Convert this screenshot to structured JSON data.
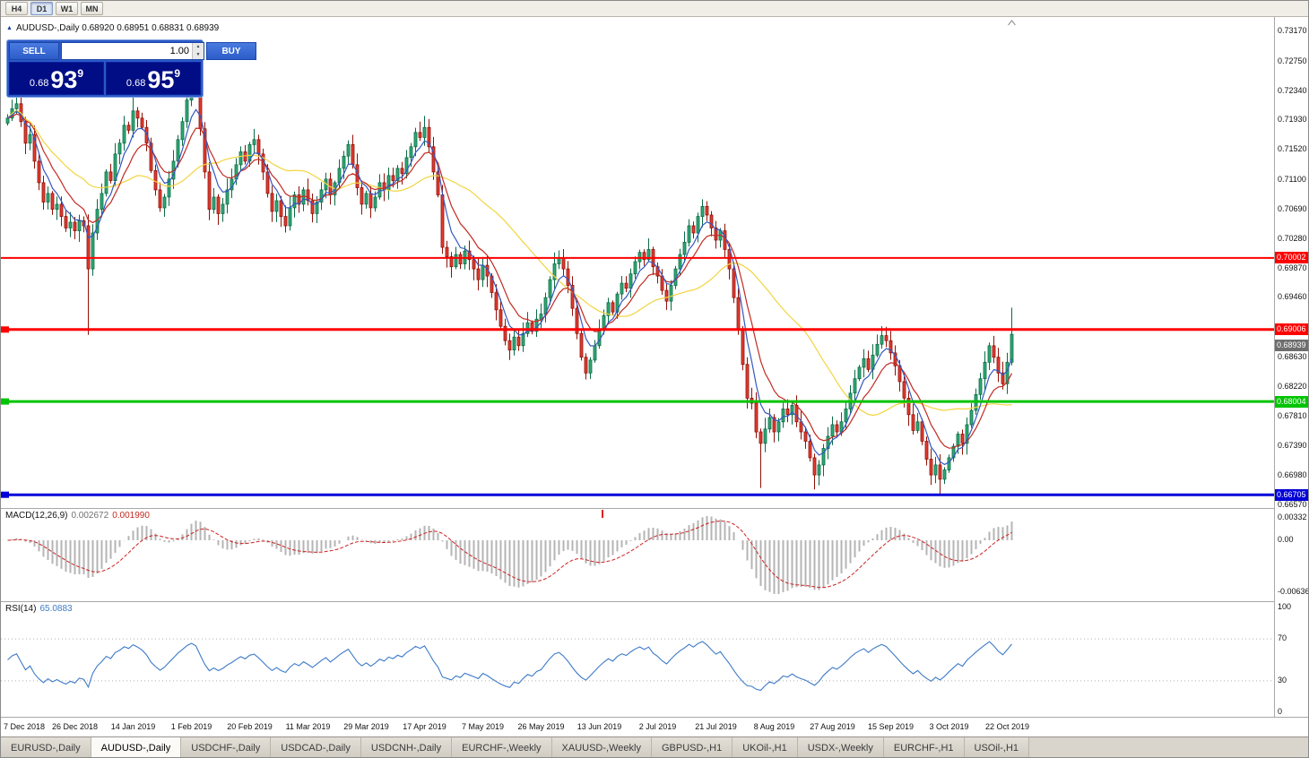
{
  "icons": {
    "collapse": "▲",
    "spinner_up": "▲",
    "spinner_down": "▼"
  },
  "toolbar": {
    "timeframes": [
      {
        "label": "H4",
        "active": false
      },
      {
        "label": "D1",
        "active": true
      },
      {
        "label": "W1",
        "active": false
      },
      {
        "label": "MN",
        "active": false
      }
    ]
  },
  "chart_header": {
    "symbol_line": "AUDUSD-,Daily  0.68920 0.68951 0.68831 0.68939"
  },
  "trade_panel": {
    "sell_label": "SELL",
    "buy_label": "BUY",
    "volume": "1.00",
    "sell_price": {
      "prefix": "0.68",
      "big": "93",
      "sup": "9"
    },
    "buy_price": {
      "prefix": "0.68",
      "big": "95",
      "sup": "9"
    }
  },
  "price_axis": {
    "max": 0.7317,
    "min": 0.6657,
    "ticks": [
      "0.73170",
      "0.72750",
      "0.72340",
      "0.71930",
      "0.71520",
      "0.71100",
      "0.70690",
      "0.70280",
      "0.69870",
      "0.69460",
      "0.68630",
      "0.68220",
      "0.67810",
      "0.67390",
      "0.66980",
      "0.66570"
    ],
    "current_price": {
      "label": "0.68939",
      "value": 0.68939,
      "color": "#6e6e6e"
    }
  },
  "hlines": [
    {
      "price": 0.70002,
      "label": "0.70002",
      "color": "#fe0000",
      "width": 2,
      "anchor": false
    },
    {
      "price": 0.69006,
      "label": "0.69006",
      "color": "#fe0000",
      "width": 3,
      "anchor": true
    },
    {
      "price": 0.68004,
      "label": "0.68004",
      "color": "#00c400",
      "width": 3,
      "anchor": true
    },
    {
      "price": 0.66705,
      "label": "0.66705",
      "color": "#0000d8",
      "width": 3,
      "anchor": true
    }
  ],
  "chart_data": {
    "type": "candlestick",
    "symbol": "AUDUSD-",
    "timeframe": "Daily",
    "ohlc_header": {
      "open": "0.68920",
      "high": "0.68951",
      "low": "0.68831",
      "close": "0.68939"
    },
    "first_open": 0.7188,
    "closes": [
      0.7195,
      0.7208,
      0.7215,
      0.719,
      0.716,
      0.7172,
      0.7135,
      0.7105,
      0.7078,
      0.709,
      0.7068,
      0.7075,
      0.7058,
      0.7042,
      0.705,
      0.7038,
      0.7052,
      0.7045,
      0.6985,
      0.7035,
      0.7068,
      0.709,
      0.712,
      0.7108,
      0.7145,
      0.716,
      0.7185,
      0.7178,
      0.7205,
      0.7195,
      0.7182,
      0.716,
      0.7122,
      0.7095,
      0.707,
      0.7085,
      0.711,
      0.7135,
      0.7165,
      0.719,
      0.722,
      0.724,
      0.7228,
      0.718,
      0.712,
      0.7068,
      0.7085,
      0.7062,
      0.7075,
      0.7095,
      0.711,
      0.713,
      0.7148,
      0.7135,
      0.7158,
      0.7165,
      0.7145,
      0.712,
      0.709,
      0.7065,
      0.708,
      0.7058,
      0.7045,
      0.707,
      0.7088,
      0.7075,
      0.7095,
      0.708,
      0.7062,
      0.7078,
      0.7095,
      0.711,
      0.7088,
      0.7105,
      0.7125,
      0.7142,
      0.7158,
      0.713,
      0.7098,
      0.7075,
      0.709,
      0.707,
      0.7085,
      0.7105,
      0.7095,
      0.7115,
      0.7108,
      0.7125,
      0.7118,
      0.714,
      0.7155,
      0.7175,
      0.7168,
      0.7182,
      0.7155,
      0.712,
      0.7088,
      0.7015,
      0.7002,
      0.6988,
      0.7005,
      0.6992,
      0.701,
      0.6998,
      0.6985,
      0.697,
      0.699,
      0.6975,
      0.6952,
      0.6928,
      0.6905,
      0.6885,
      0.6872,
      0.689,
      0.6878,
      0.6895,
      0.691,
      0.6898,
      0.6915,
      0.6922,
      0.6945,
      0.697,
      0.6992,
      0.7,
      0.6985,
      0.6962,
      0.693,
      0.6895,
      0.6862,
      0.684,
      0.6858,
      0.6878,
      0.69,
      0.692,
      0.6938,
      0.6925,
      0.695,
      0.6965,
      0.6958,
      0.6978,
      0.6995,
      0.7008,
      0.6998,
      0.7012,
      0.6988,
      0.6975,
      0.6955,
      0.694,
      0.6962,
      0.6985,
      0.7005,
      0.7022,
      0.7045,
      0.7035,
      0.7058,
      0.7072,
      0.706,
      0.7042,
      0.7025,
      0.7038,
      0.7012,
      0.6985,
      0.6945,
      0.69,
      0.6852,
      0.6805,
      0.6798,
      0.6758,
      0.6742,
      0.6762,
      0.6778,
      0.6758,
      0.6772,
      0.679,
      0.6782,
      0.6795,
      0.6772,
      0.6758,
      0.6745,
      0.6722,
      0.6698,
      0.6712,
      0.6735,
      0.6752,
      0.6768,
      0.6758,
      0.6772,
      0.679,
      0.6812,
      0.6832,
      0.6848,
      0.686,
      0.6845,
      0.6865,
      0.688,
      0.6892,
      0.6885,
      0.6868,
      0.685,
      0.6828,
      0.6805,
      0.6782,
      0.676,
      0.6772,
      0.6745,
      0.672,
      0.6698,
      0.6712,
      0.6692,
      0.6705,
      0.6722,
      0.6738,
      0.6755,
      0.6742,
      0.6768,
      0.6788,
      0.681,
      0.6832,
      0.6855,
      0.6878,
      0.6862,
      0.684,
      0.6825,
      0.6855,
      0.68939
    ],
    "high_overrides": {
      "28": 0.7235,
      "41": 0.7252,
      "93": 0.7198,
      "155": 0.7082,
      "224": 0.6931
    },
    "low_overrides": {
      "18": 0.6893,
      "129": 0.6831,
      "168": 0.668,
      "180": 0.6678,
      "208": 0.6671
    },
    "colors": {
      "up_fill": "#2fa874",
      "up_edge": "#0b6b45",
      "down_fill": "#e23b30",
      "down_edge": "#8f1108",
      "macd_hist": "#b4b4b4",
      "macd_signal": "#cc2222",
      "rsi": "#3d7bc8"
    },
    "moving_averages": [
      {
        "period": 30,
        "type": "sma",
        "color": "#f2d43f"
      },
      {
        "period": 10,
        "type": "ema",
        "color": "#c22a22"
      },
      {
        "period": 5,
        "type": "ema",
        "color": "#3458c0"
      }
    ],
    "x_labels": [
      {
        "text": "7 Dec 2018",
        "i": 2
      },
      {
        "text": "26 Dec 2018",
        "i": 15
      },
      {
        "text": "14 Jan 2019",
        "i": 28
      },
      {
        "text": "1 Feb 2019",
        "i": 41
      },
      {
        "text": "20 Feb 2019",
        "i": 54
      },
      {
        "text": "11 Mar 2019",
        "i": 67
      },
      {
        "text": "29 Mar 2019",
        "i": 80
      },
      {
        "text": "17 Apr 2019",
        "i": 93
      },
      {
        "text": "7 May 2019",
        "i": 106
      },
      {
        "text": "26 May 2019",
        "i": 119
      },
      {
        "text": "13 Jun 2019",
        "i": 132
      },
      {
        "text": "2 Jul 2019",
        "i": 145
      },
      {
        "text": "21 Jul 2019",
        "i": 158
      },
      {
        "text": "8 Aug 2019",
        "i": 171
      },
      {
        "text": "27 Aug 2019",
        "i": 184
      },
      {
        "text": "15 Sep 2019",
        "i": 197
      },
      {
        "text": "3 Oct 2019",
        "i": 210
      },
      {
        "text": "22 Oct 2019",
        "i": 223
      }
    ]
  },
  "macd": {
    "title": "MACD(12,26,9)",
    "value_main": "0.002672",
    "value_signal": "0.001990",
    "params": {
      "fast": 12,
      "slow": 26,
      "signal": 9
    },
    "axis": {
      "max_label": "0.00332",
      "zero_label": "0.00",
      "min_label": "-0.00636"
    }
  },
  "rsi": {
    "title": "RSI(14)",
    "value": "65.0883",
    "period": 14,
    "levels": [
      100,
      70,
      30,
      0
    ]
  },
  "tabs": [
    {
      "label": "EURUSD-,Daily",
      "active": false
    },
    {
      "label": "AUDUSD-,Daily",
      "active": true
    },
    {
      "label": "USDCHF-,Daily",
      "active": false
    },
    {
      "label": "USDCAD-,Daily",
      "active": false
    },
    {
      "label": "USDCNH-,Daily",
      "active": false
    },
    {
      "label": "EURCHF-,Weekly",
      "active": false
    },
    {
      "label": "XAUUSD-,Weekly",
      "active": false
    },
    {
      "label": "GBPUSD-,H1",
      "active": false
    },
    {
      "label": "UKOil-,H1",
      "active": false
    },
    {
      "label": "USDX-,Weekly",
      "active": false
    },
    {
      "label": "EURCHF-,H1",
      "active": false
    },
    {
      "label": "USOil-,H1",
      "active": false
    }
  ]
}
